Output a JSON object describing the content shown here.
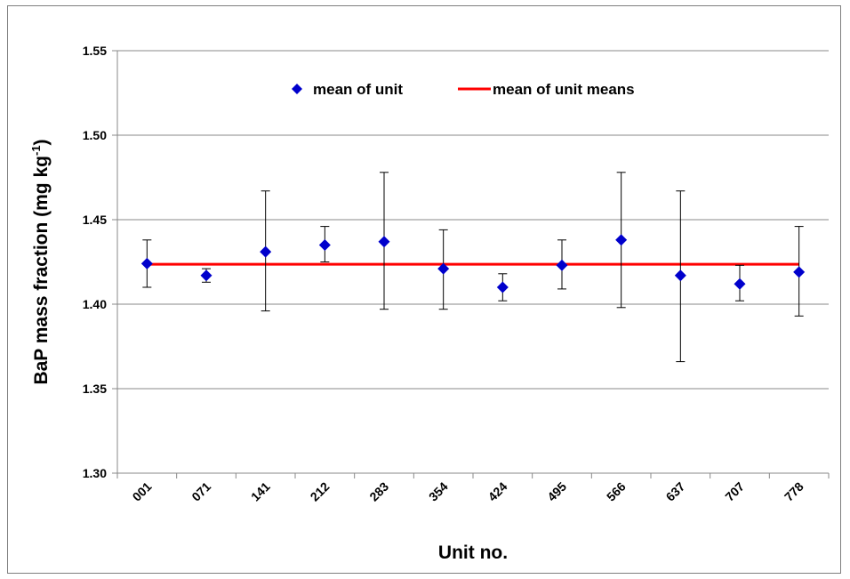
{
  "chart_data": {
    "type": "scatter",
    "xlabel": "Unit no.",
    "ylabel_main": "BaP mass fraction (mg kg",
    "ylabel_sup": "-1",
    "ylabel_tail": ")",
    "ylim": [
      1.3,
      1.55
    ],
    "yticks": [
      1.3,
      1.35,
      1.4,
      1.45,
      1.5,
      1.55
    ],
    "ytick_labels": [
      "1.30",
      "1.35",
      "1.40",
      "1.45",
      "1.50",
      "1.55"
    ],
    "grid": "horizontal",
    "legend_position": "top-center",
    "categories": [
      "001",
      "071",
      "141",
      "212",
      "283",
      "354",
      "424",
      "495",
      "566",
      "637",
      "707",
      "778"
    ],
    "series": [
      {
        "name": "mean of unit",
        "kind": "points-with-error-bars",
        "color": "#0000cc",
        "values": [
          1.424,
          1.417,
          1.431,
          1.435,
          1.437,
          1.421,
          1.41,
          1.423,
          1.438,
          1.417,
          1.412,
          1.419
        ],
        "err_low": [
          1.41,
          1.413,
          1.396,
          1.425,
          1.397,
          1.397,
          1.402,
          1.409,
          1.398,
          1.366,
          1.402,
          1.393
        ],
        "err_high": [
          1.438,
          1.421,
          1.467,
          1.446,
          1.478,
          1.444,
          1.418,
          1.438,
          1.478,
          1.467,
          1.423,
          1.446
        ]
      },
      {
        "name": "mean of unit means",
        "kind": "horizontal-line",
        "color": "#ff0000",
        "value": 1.4236
      }
    ]
  }
}
